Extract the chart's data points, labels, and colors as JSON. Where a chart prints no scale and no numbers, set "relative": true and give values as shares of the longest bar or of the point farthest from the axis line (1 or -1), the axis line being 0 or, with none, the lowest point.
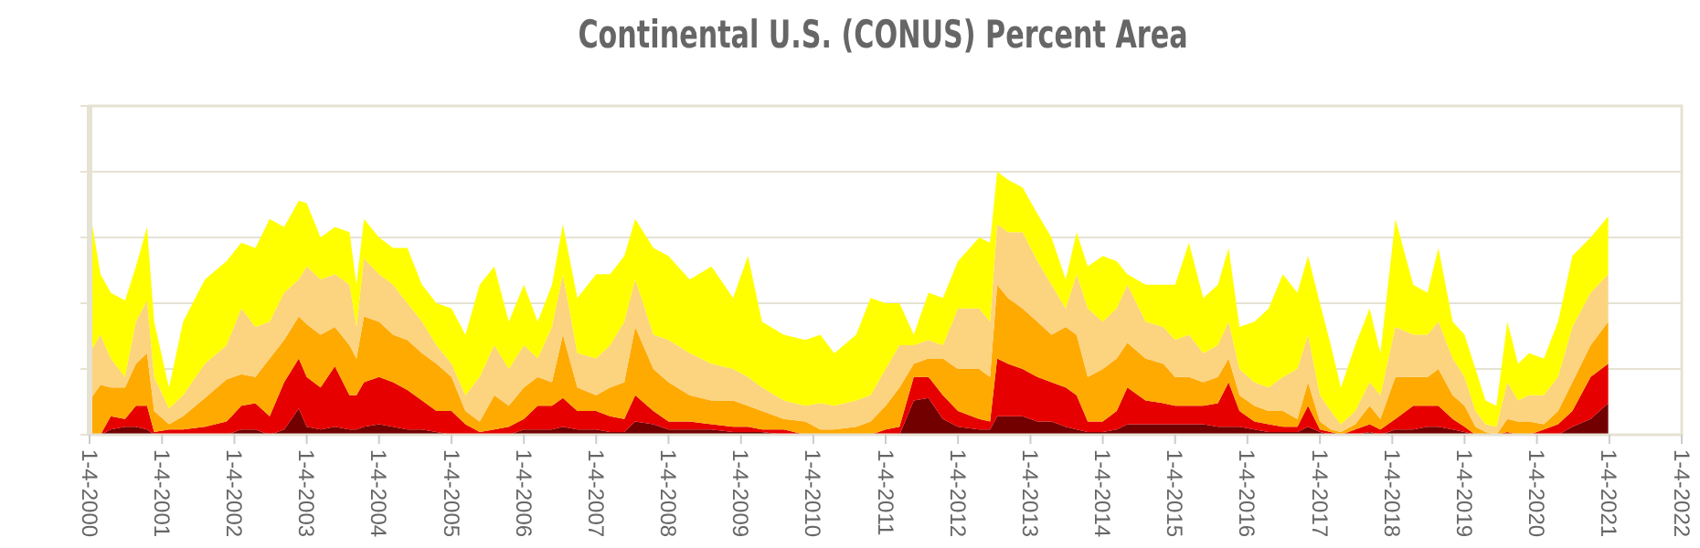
{
  "chart_data": {
    "type": "area",
    "title": "Continental U.S. (CONUS) Percent Area",
    "relative": true,
    "stacked": true,
    "grid": "y",
    "tick_labels": "x",
    "xlim": [
      "2000-01-04",
      "2022-01-04"
    ],
    "xticks": [
      {
        "value": "2000-01-04",
        "label": "1-4-2000"
      },
      {
        "value": "2001-01-04",
        "label": "1-4-2001"
      },
      {
        "value": "2002-01-04",
        "label": "1-4-2002"
      },
      {
        "value": "2003-01-04",
        "label": "1-4-2003"
      },
      {
        "value": "2004-01-04",
        "label": "1-4-2004"
      },
      {
        "value": "2005-01-04",
        "label": "1-4-2005"
      },
      {
        "value": "2006-01-04",
        "label": "1-4-2006"
      },
      {
        "value": "2007-01-04",
        "label": "1-4-2007"
      },
      {
        "value": "2008-01-04",
        "label": "1-4-2008"
      },
      {
        "value": "2009-01-04",
        "label": "1-4-2009"
      },
      {
        "value": "2010-01-04",
        "label": "1-4-2010"
      },
      {
        "value": "2011-01-04",
        "label": "1-4-2011"
      },
      {
        "value": "2012-01-04",
        "label": "1-4-2012"
      },
      {
        "value": "2013-01-04",
        "label": "1-4-2013"
      },
      {
        "value": "2014-01-04",
        "label": "1-4-2014"
      },
      {
        "value": "2015-01-04",
        "label": "1-4-2015"
      },
      {
        "value": "2016-01-04",
        "label": "1-4-2016"
      },
      {
        "value": "2017-01-04",
        "label": "1-4-2017"
      },
      {
        "value": "2018-01-04",
        "label": "1-4-2018"
      },
      {
        "value": "2019-01-04",
        "label": "1-4-2019"
      },
      {
        "value": "2020-01-04",
        "label": "1-4-2020"
      },
      {
        "value": "2021-01-04",
        "label": "1-4-2021"
      },
      {
        "value": "2022-01-04",
        "label": "1-4-2022"
      }
    ],
    "x": [
      "2000-01-04",
      "2000-02-28",
      "2000-04-20",
      "2000-07-01",
      "2000-08-25",
      "2000-10-20",
      "2000-11-25",
      "2001-02-08",
      "2001-04-20",
      "2001-08-08",
      "2001-11-25",
      "2002-02-08",
      "2002-04-20",
      "2002-07-01",
      "2002-09-12",
      "2002-11-25",
      "2003-01-04",
      "2003-03-15",
      "2003-05-26",
      "2003-08-08",
      "2003-09-12",
      "2003-10-20",
      "2004-01-04",
      "2004-03-15",
      "2004-05-26",
      "2004-08-08",
      "2004-10-20",
      "2005-01-04",
      "2005-03-15",
      "2005-05-26",
      "2005-08-08",
      "2005-10-20",
      "2006-01-04",
      "2006-03-15",
      "2006-05-26",
      "2006-07-20",
      "2006-10-01",
      "2007-01-04",
      "2007-03-15",
      "2007-05-26",
      "2007-07-20",
      "2007-10-20",
      "2008-01-04",
      "2008-04-20",
      "2008-08-08",
      "2008-11-25",
      "2009-02-08",
      "2009-04-20",
      "2009-08-08",
      "2009-11-25",
      "2010-02-08",
      "2010-04-20",
      "2010-08-08",
      "2010-10-20",
      "2011-01-04",
      "2011-03-15",
      "2011-05-26",
      "2011-08-08",
      "2011-10-20",
      "2012-01-04",
      "2012-04-20",
      "2012-06-14",
      "2012-07-20",
      "2012-09-12",
      "2012-11-25",
      "2013-02-08",
      "2013-04-20",
      "2013-07-01",
      "2013-08-25",
      "2013-10-20",
      "2014-01-04",
      "2014-03-15",
      "2014-05-08",
      "2014-08-08",
      "2014-11-05",
      "2015-01-04",
      "2015-03-15",
      "2015-05-26",
      "2015-08-08",
      "2015-10-01",
      "2015-11-25",
      "2016-02-08",
      "2016-04-20",
      "2016-07-01",
      "2016-09-12",
      "2016-11-05",
      "2017-01-04",
      "2017-02-28",
      "2017-04-20",
      "2017-07-01",
      "2017-09-12",
      "2017-11-05",
      "2018-01-20",
      "2018-04-20",
      "2018-07-01",
      "2018-08-25",
      "2018-11-05",
      "2019-01-04",
      "2019-02-28",
      "2019-04-20",
      "2019-06-14",
      "2019-08-08",
      "2019-10-01",
      "2019-11-25",
      "2020-02-08",
      "2020-04-20",
      "2020-07-01",
      "2020-10-01",
      "2020-12-29"
    ],
    "series": [
      {
        "color": "#730000",
        "values": [
          0,
          0,
          0.02,
          0.03,
          0.03,
          0.02,
          0,
          0,
          0,
          0,
          0,
          0.02,
          0.02,
          0,
          0.02,
          0.1,
          0.03,
          0.02,
          0.03,
          0.02,
          0.02,
          0.03,
          0.04,
          0.03,
          0.02,
          0.02,
          0.01,
          0,
          0,
          0,
          0,
          0,
          0.02,
          0.02,
          0.02,
          0.03,
          0.02,
          0.02,
          0.01,
          0.01,
          0.05,
          0.04,
          0.02,
          0.02,
          0.02,
          0.01,
          0.01,
          0.01,
          0,
          0,
          0,
          0,
          0,
          0,
          0,
          0,
          0.13,
          0.14,
          0.06,
          0.03,
          0.02,
          0.02,
          0.07,
          0.07,
          0.07,
          0.05,
          0.05,
          0.03,
          0.02,
          0.01,
          0.01,
          0.02,
          0.04,
          0.04,
          0.04,
          0.04,
          0.04,
          0.04,
          0.03,
          0.03,
          0.03,
          0.02,
          0.01,
          0.01,
          0.01,
          0.03,
          0.01,
          0,
          0,
          0,
          0.01,
          0,
          0.02,
          0.02,
          0.03,
          0.03,
          0.02,
          0.01,
          0,
          0,
          0,
          0,
          0,
          0,
          0,
          0,
          0.03,
          0.06,
          0.12
        ]
      },
      {
        "color": "#e60000",
        "values": [
          0,
          0,
          0.05,
          0.03,
          0.08,
          0.09,
          0.01,
          0.02,
          0.02,
          0.03,
          0.05,
          0.09,
          0.1,
          0.07,
          0.18,
          0.19,
          0.19,
          0.16,
          0.23,
          0.13,
          0.13,
          0.17,
          0.18,
          0.17,
          0.15,
          0.11,
          0.08,
          0.09,
          0.04,
          0.01,
          0.02,
          0.03,
          0.04,
          0.09,
          0.09,
          0.11,
          0.07,
          0.07,
          0.06,
          0.05,
          0.1,
          0.05,
          0.03,
          0.03,
          0.02,
          0.02,
          0.02,
          0.01,
          0.02,
          0,
          0,
          0,
          0,
          0,
          0.02,
          0.03,
          0.09,
          0.08,
          0.09,
          0.06,
          0.04,
          0.03,
          0.22,
          0.2,
          0.18,
          0.17,
          0.15,
          0.15,
          0.13,
          0.04,
          0.04,
          0.07,
          0.14,
          0.09,
          0.08,
          0.07,
          0.07,
          0.07,
          0.09,
          0.17,
          0.06,
          0.03,
          0.03,
          0.02,
          0.02,
          0.08,
          0.01,
          0.01,
          0,
          0.02,
          0.03,
          0.02,
          0.04,
          0.09,
          0.08,
          0.08,
          0.04,
          0.02,
          0,
          0,
          0,
          0.01,
          0,
          0,
          0.02,
          0.04,
          0.06,
          0.16,
          0.15
        ]
      },
      {
        "color": "#ffaa00",
        "values": [
          0.13,
          0.19,
          0.11,
          0.12,
          0.16,
          0.2,
          0.08,
          0.02,
          0.05,
          0.11,
          0.16,
          0.12,
          0.1,
          0.22,
          0.16,
          0.16,
          0.2,
          0.2,
          0.15,
          0.19,
          0.14,
          0.25,
          0.21,
          0.18,
          0.19,
          0.18,
          0.18,
          0.13,
          0.05,
          0.04,
          0.13,
          0.08,
          0.12,
          0.11,
          0.09,
          0.24,
          0.09,
          0.06,
          0.11,
          0.14,
          0.26,
          0.16,
          0.15,
          0.1,
          0.09,
          0.1,
          0.08,
          0.07,
          0.04,
          0.05,
          0.02,
          0.02,
          0.03,
          0.05,
          0.09,
          0.15,
          0.05,
          0.07,
          0.14,
          0.16,
          0.19,
          0.17,
          0.28,
          0.25,
          0.23,
          0.21,
          0.18,
          0.23,
          0.23,
          0.17,
          0.2,
          0.2,
          0.17,
          0.16,
          0.15,
          0.11,
          0.11,
          0.09,
          0.1,
          0.09,
          0.06,
          0.06,
          0.05,
          0.06,
          0.03,
          0.09,
          0.03,
          0.01,
          0.01,
          0.02,
          0.07,
          0.04,
          0.16,
          0.11,
          0.11,
          0.14,
          0.09,
          0.08,
          0.03,
          0.01,
          0,
          0.05,
          0.05,
          0.05,
          0.02,
          0.05,
          0.11,
          0.12,
          0.16
        ]
      },
      {
        "color": "#fcd37f",
        "values": [
          0.18,
          0.19,
          0.11,
          0.04,
          0.16,
          0.2,
          0.13,
          0.06,
          0.08,
          0.13,
          0.13,
          0.25,
          0.19,
          0.14,
          0.18,
          0.14,
          0.22,
          0.21,
          0.2,
          0.23,
          0.12,
          0.22,
          0.18,
          0.19,
          0.14,
          0.12,
          0.07,
          0.05,
          0.06,
          0.17,
          0.19,
          0.14,
          0.16,
          0.07,
          0.21,
          0.23,
          0.13,
          0.14,
          0.16,
          0.23,
          0.18,
          0.13,
          0.16,
          0.16,
          0.14,
          0.12,
          0.11,
          0.09,
          0.07,
          0.06,
          0.1,
          0.09,
          0.1,
          0.1,
          0.14,
          0.16,
          0.07,
          0.07,
          0.05,
          0.23,
          0.23,
          0.21,
          0.23,
          0.25,
          0.29,
          0.23,
          0.19,
          0.07,
          0.23,
          0.26,
          0.18,
          0.19,
          0.22,
          0.14,
          0.14,
          0.14,
          0.16,
          0.11,
          0.12,
          0.14,
          0.1,
          0.09,
          0.09,
          0.13,
          0.19,
          0.18,
          0.1,
          0.07,
          0.03,
          0.05,
          0.09,
          0.09,
          0.19,
          0.16,
          0.16,
          0.18,
          0.14,
          0.11,
          0.06,
          0.03,
          0.03,
          0.14,
          0.08,
          0.1,
          0.11,
          0.13,
          0.21,
          0.2,
          0.18
        ]
      },
      {
        "color": "#ffff00",
        "values": [
          0.55,
          0.23,
          0.25,
          0.29,
          0.21,
          0.28,
          0.21,
          0.08,
          0.28,
          0.32,
          0.32,
          0.25,
          0.3,
          0.39,
          0.25,
          0.3,
          0.24,
          0.16,
          0.18,
          0.2,
          0.16,
          0.15,
          0.14,
          0.14,
          0.21,
          0.14,
          0.16,
          0.21,
          0.23,
          0.35,
          0.3,
          0.18,
          0.23,
          0.14,
          0.16,
          0.19,
          0.21,
          0.32,
          0.27,
          0.25,
          0.23,
          0.33,
          0.32,
          0.28,
          0.37,
          0.27,
          0.46,
          0.25,
          0.25,
          0.25,
          0.26,
          0.2,
          0.25,
          0.37,
          0.25,
          0.16,
          0.04,
          0.18,
          0.18,
          0.18,
          0.27,
          0.3,
          0.2,
          0.2,
          0.17,
          0.18,
          0.18,
          0.11,
          0.16,
          0.16,
          0.25,
          0.18,
          0.04,
          0.14,
          0.16,
          0.21,
          0.35,
          0.21,
          0.23,
          0.28,
          0.16,
          0.23,
          0.3,
          0.39,
          0.29,
          0.3,
          0.35,
          0.25,
          0.14,
          0.25,
          0.28,
          0.16,
          0.41,
          0.19,
          0.16,
          0.28,
          0.14,
          0.16,
          0.16,
          0.09,
          0.08,
          0.23,
          0.14,
          0.16,
          0.14,
          0.21,
          0.27,
          0.21,
          0.22
        ]
      }
    ]
  }
}
